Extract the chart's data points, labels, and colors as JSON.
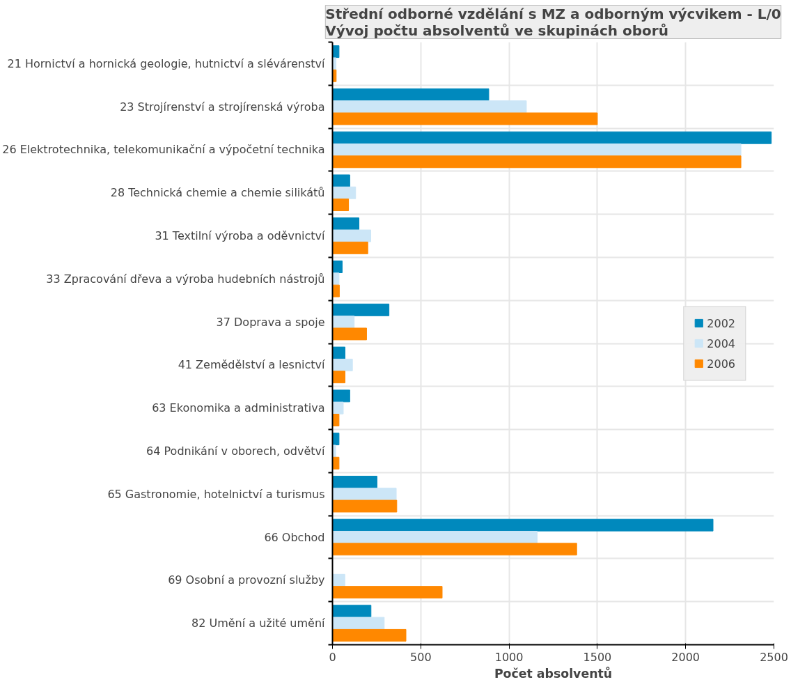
{
  "chart_data": {
    "type": "bar",
    "orientation": "horizontal",
    "title": "Střední odborné vzdělání s MZ a odborným výcvikem - L/0\nVývoj počtu absolventů ve skupinách oborů",
    "xlabel": "Počet absolventů",
    "categories": [
      "21 Hornictví a hornická geologie, hutnictví a slévárenství",
      "23 Strojírenství a strojírenská výroba",
      "26 Elektrotechnika, telekomunikační a výpočetní technika",
      "28 Technická chemie a chemie silikátů",
      "31 Textilní výroba a oděvnictví",
      "33 Zpracování dřeva a výroba hudebních nástrojů",
      "37 Doprava a spoje",
      "41 Zemědělství a lesnictví",
      "63 Ekonomika a administrativa",
      "64 Podnikání v oborech, odvětví",
      "65 Gastronomie, hotelnictví a turismus",
      "66 Obchod",
      "69 Osobní a provozní služby",
      "82 Umění a užité umění"
    ],
    "series": [
      {
        "name": "2002",
        "color": "#0089bd",
        "values": [
          37,
          885,
          2485,
          98,
          150,
          55,
          320,
          71,
          98,
          37,
          252,
          2155,
          null,
          218
        ]
      },
      {
        "name": "2004",
        "color": "#cce6f7",
        "values": [
          20,
          1098,
          2313,
          131,
          217,
          37,
          123,
          113,
          61,
          18,
          361,
          1159,
          70,
          293
        ]
      },
      {
        "name": "2006",
        "color": "#ff8800",
        "values": [
          21,
          1500,
          2313,
          91,
          200,
          39,
          193,
          71,
          37,
          37,
          364,
          1383,
          621,
          416
        ]
      }
    ],
    "xlim": [
      0,
      2500
    ],
    "xticks": [
      0,
      500,
      1000,
      1500,
      2000,
      2500
    ],
    "grid": true,
    "legend": "right"
  }
}
